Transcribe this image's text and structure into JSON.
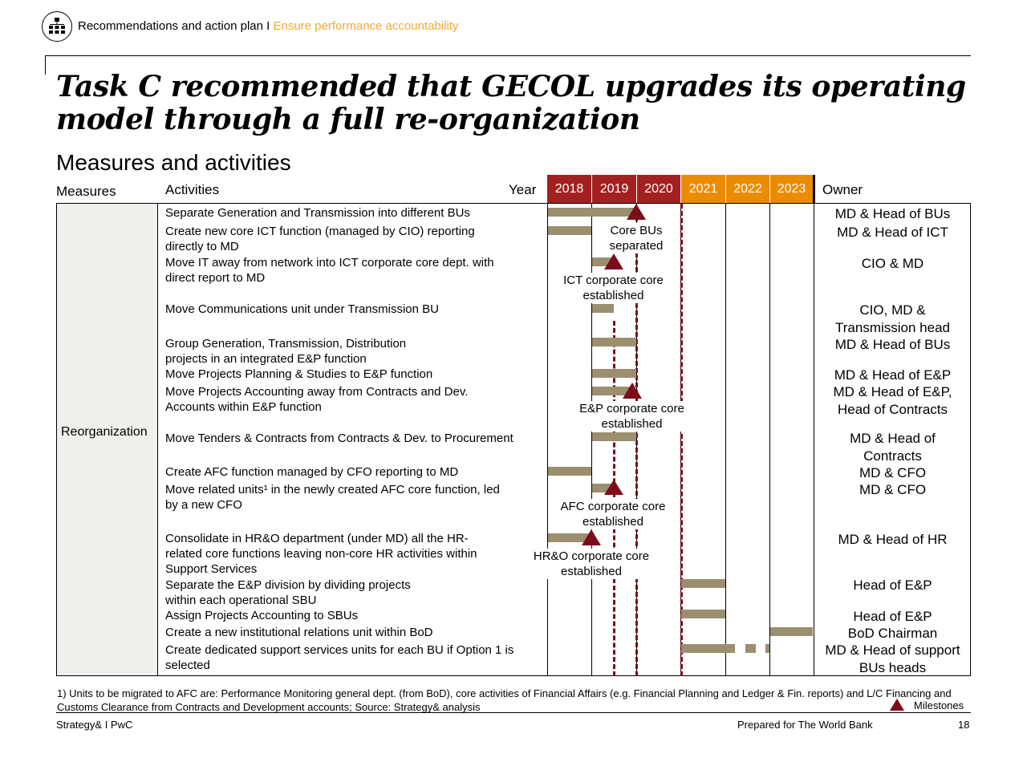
{
  "header": {
    "section": "Recommendations and action plan I",
    "subsection": "Ensure performance accountability"
  },
  "title": "Task C recommended that GECOL upgrades its operating model through a full re-organization",
  "subtitle": "Measures and activities",
  "columns": {
    "measures": "Measures",
    "activities": "Activities",
    "year": "Year",
    "owner": "Owner"
  },
  "years": [
    "2018",
    "2019",
    "2020",
    "2021",
    "2022",
    "2023"
  ],
  "measure": "Reorganization",
  "activities": [
    "Separate Generation and Transmission into different BUs",
    "Create new core ICT function (managed by CIO) reporting directly to MD",
    "Move IT away from network into ICT corporate core dept. with direct report to MD",
    "Move Communications unit under Transmission BU",
    "Group Generation, Transmission, Distribution projects in an integrated E&P function",
    "Move Projects Planning & Studies to E&P function",
    "Move Projects Accounting away from Contracts and Dev. Accounts within E&P function",
    "Move Tenders & Contracts from Contracts & Dev. to Procurement",
    "Create AFC function managed by CFO reporting to MD",
    "Move related units¹ in the newly created AFC core function, led by a new CFO",
    "Consolidate in HR&O department (under MD) all the HR-related core functions leaving non-core HR activities within Support Services",
    "Separate the E&P division by dividing projects within each operational SBU",
    "Assign Projects Accounting to SBUs",
    "Create a new institutional relations unit within BoD",
    "Create dedicated support services units for each BU if Option 1 is selected"
  ],
  "owners": [
    "MD & Head of BUs",
    "MD & Head of ICT",
    "CIO & MD",
    "CIO, MD & Transmission  head",
    "MD & Head of BUs",
    "MD & Head of E&P",
    "MD & Head of E&P, Head of Contracts",
    "MD & Head of Contracts",
    "MD & CFO",
    "MD & CFO",
    "MD & Head of HR",
    "Head of E&P",
    "Head of E&P",
    "BoD Chairman",
    "MD & Head of support BUs heads"
  ],
  "milestones": [
    "Core BUs separated",
    "ICT corporate core established",
    "E&P corporate core established",
    "AFC corporate core established",
    "HR&O corporate core established"
  ],
  "footnote": "1) Units to be migrated to AFC are: Performance Monitoring general dept. (from BoD), core activities of Financial Affairs (e.g. Financial Planning and Ledger & Fin. reports)  and L/C Financing and Customs Clearance from Contracts and Development accounts; Source: Strategy& analysis",
  "legend": {
    "milestones": "Milestones"
  },
  "footer": {
    "left": "Strategy& I PwC",
    "center": "Prepared for The World Bank",
    "page": "18"
  },
  "colors": {
    "header_accent": "#f0ab33",
    "year_dark": "#a32020",
    "year_orange": "#eb8c00",
    "bar": "#9b8f70",
    "milestone": "#7d0c1a",
    "measure_bg": "#f0efeb"
  }
}
